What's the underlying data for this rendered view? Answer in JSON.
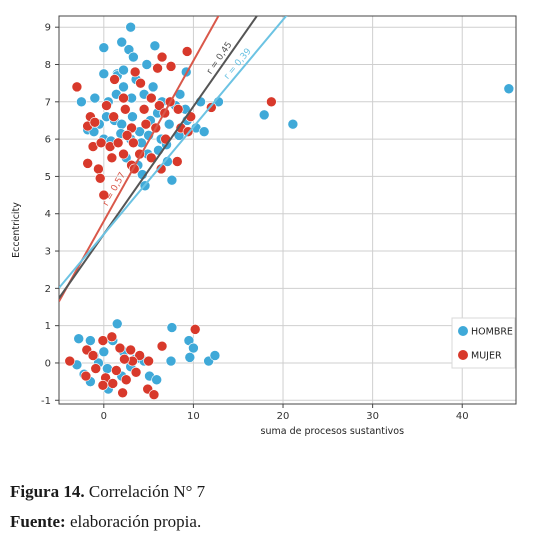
{
  "chart_data": {
    "type": "scatter",
    "title": "",
    "xlabel": "suma de procesos sustantivos",
    "ylabel": "Eccentricity",
    "xlim": [
      -5,
      46
    ],
    "ylim": [
      -1.1,
      9.3
    ],
    "xticks": [
      0,
      10,
      20,
      30,
      40
    ],
    "yticks": [
      -1,
      0,
      1,
      2,
      3,
      4,
      5,
      6,
      7,
      8,
      9
    ],
    "grid": true,
    "legend_position": "right",
    "series": [
      {
        "name": "HOMBRE",
        "color": "#3fa9d8",
        "points": [
          [
            0,
            8.45
          ],
          [
            2,
            8.6
          ],
          [
            3,
            9
          ],
          [
            2.8,
            8.4
          ],
          [
            3.3,
            8.2
          ],
          [
            5.7,
            8.5
          ],
          [
            0,
            7.75
          ],
          [
            1.5,
            7.75
          ],
          [
            -1,
            7.1
          ],
          [
            -2.5,
            7.0
          ],
          [
            0.5,
            7.0
          ],
          [
            1.4,
            7.2
          ],
          [
            2.2,
            7.4
          ],
          [
            3.1,
            7.1
          ],
          [
            4.5,
            7.2
          ],
          [
            5.5,
            7.4
          ],
          [
            6.5,
            7.0
          ],
          [
            8.5,
            7.2
          ],
          [
            9.2,
            7.8
          ],
          [
            10.8,
            7.0
          ],
          [
            12.8,
            7.0
          ],
          [
            -1.8,
            6.25
          ],
          [
            -0.5,
            6.4
          ],
          [
            0.3,
            6.6
          ],
          [
            1.2,
            6.5
          ],
          [
            2,
            6.4
          ],
          [
            3.2,
            6.6
          ],
          [
            4,
            6.2
          ],
          [
            5.2,
            6.5
          ],
          [
            6,
            6.7
          ],
          [
            7.3,
            6.4
          ],
          [
            8,
            6.9
          ],
          [
            9.1,
            6.8
          ],
          [
            10.3,
            6.3
          ],
          [
            11.2,
            6.2
          ],
          [
            -1.1,
            6.2
          ],
          [
            0,
            6.0
          ],
          [
            0.8,
            5.95
          ],
          [
            1.9,
            6.15
          ],
          [
            3,
            6.0
          ],
          [
            4.2,
            5.9
          ],
          [
            5,
            6.1
          ],
          [
            6.4,
            6.0
          ],
          [
            7,
            5.85
          ],
          [
            8.4,
            6.1
          ],
          [
            9.3,
            6.5
          ],
          [
            2.5,
            5.5
          ],
          [
            3.8,
            5.3
          ],
          [
            4.9,
            5.6
          ],
          [
            6.1,
            5.7
          ],
          [
            7.1,
            5.4
          ],
          [
            4.3,
            5.05
          ],
          [
            7.6,
            4.9
          ],
          [
            4.6,
            4.75
          ],
          [
            17.9,
            6.65
          ],
          [
            21.1,
            6.4
          ],
          [
            45.2,
            7.35
          ],
          [
            1.5,
            7.7
          ],
          [
            2.2,
            7.85
          ],
          [
            4.8,
            8.0
          ],
          [
            3.6,
            7.6
          ],
          [
            -1.5,
            0.6
          ],
          [
            -2.8,
            0.65
          ],
          [
            -1.1,
            0.2
          ],
          [
            0,
            0.3
          ],
          [
            1,
            0.6
          ],
          [
            1.5,
            1.05
          ],
          [
            2.2,
            0.3
          ],
          [
            3.5,
            0.1
          ],
          [
            4.2,
            0.1
          ],
          [
            5.1,
            -0.35
          ],
          [
            5.9,
            -0.45
          ],
          [
            0.4,
            -0.15
          ],
          [
            -0.6,
            0
          ],
          [
            -2.2,
            -0.3
          ],
          [
            -3,
            -0.05
          ],
          [
            -1.5,
            -0.5
          ],
          [
            0.5,
            -0.7
          ],
          [
            2,
            -0.35
          ],
          [
            3,
            -0.1
          ],
          [
            7.6,
            0.95
          ],
          [
            9.5,
            0.6
          ],
          [
            10,
            0.4
          ],
          [
            9.6,
            0.15
          ],
          [
            11.7,
            0.05
          ],
          [
            12.4,
            0.2
          ],
          [
            7.5,
            0.05
          ],
          [
            4.5,
            0.05
          ]
        ]
      },
      {
        "name": "MUJER",
        "color": "#d8392b",
        "points": [
          [
            -3,
            7.4
          ],
          [
            1.2,
            7.6
          ],
          [
            2.2,
            7.1
          ],
          [
            3.5,
            7.8
          ],
          [
            6.5,
            8.2
          ],
          [
            7.5,
            7.95
          ],
          [
            9.3,
            8.35
          ],
          [
            6,
            7.9
          ],
          [
            -1.5,
            6.6
          ],
          [
            -1.8,
            6.35
          ],
          [
            -1,
            6.45
          ],
          [
            0.3,
            6.9
          ],
          [
            1.1,
            6.6
          ],
          [
            2.4,
            6.8
          ],
          [
            3.1,
            6.3
          ],
          [
            4.5,
            6.8
          ],
          [
            5.3,
            7.1
          ],
          [
            6.2,
            6.9
          ],
          [
            7.4,
            7.0
          ],
          [
            8.3,
            6.8
          ],
          [
            9.7,
            6.6
          ],
          [
            12,
            6.85
          ],
          [
            18.7,
            7.0
          ],
          [
            -1.2,
            5.8
          ],
          [
            -0.3,
            5.9
          ],
          [
            0.7,
            5.8
          ],
          [
            1.6,
            5.9
          ],
          [
            2.6,
            6.1
          ],
          [
            3.3,
            5.9
          ],
          [
            4.7,
            6.4
          ],
          [
            5.8,
            6.3
          ],
          [
            6.9,
            6.0
          ],
          [
            8.6,
            6.3
          ],
          [
            9.4,
            6.2
          ],
          [
            -1.8,
            5.35
          ],
          [
            -0.6,
            5.2
          ],
          [
            0.9,
            5.5
          ],
          [
            2.2,
            5.6
          ],
          [
            3.1,
            5.3
          ],
          [
            4,
            5.6
          ],
          [
            5.3,
            5.5
          ],
          [
            6.4,
            5.2
          ],
          [
            8.2,
            5.4
          ],
          [
            -0.4,
            4.95
          ],
          [
            0,
            4.5
          ],
          [
            3.4,
            5.2
          ],
          [
            6.8,
            6.7
          ],
          [
            4.1,
            7.5
          ],
          [
            -3.8,
            0.05
          ],
          [
            -1.9,
            0.35
          ],
          [
            -1.2,
            0.2
          ],
          [
            -0.1,
            0.6
          ],
          [
            0.9,
            0.7
          ],
          [
            1.8,
            0.4
          ],
          [
            3,
            0.35
          ],
          [
            4,
            0.2
          ],
          [
            6.5,
            0.45
          ],
          [
            10.2,
            0.9
          ],
          [
            -0.9,
            -0.15
          ],
          [
            0.2,
            -0.4
          ],
          [
            1.4,
            -0.2
          ],
          [
            2.5,
            -0.45
          ],
          [
            3.6,
            -0.25
          ],
          [
            4.9,
            -0.7
          ],
          [
            -0.1,
            -0.6
          ],
          [
            1,
            -0.55
          ],
          [
            2.1,
            -0.8
          ],
          [
            5.6,
            -0.85
          ],
          [
            -2,
            -0.35
          ],
          [
            3.2,
            0.05
          ],
          [
            2.3,
            0.1
          ],
          [
            5,
            0.05
          ]
        ]
      }
    ],
    "fit_lines": [
      {
        "label": "r = 0,57",
        "color": "#d9584a",
        "intercept": 3.8,
        "slope": 0.43
      },
      {
        "label": "r = 0,45",
        "color": "#555555",
        "intercept": 3.45,
        "slope": 0.3425
      },
      {
        "label": "r = 0,39",
        "color": "#6cc3e3",
        "intercept": 3.45,
        "slope": 0.2875
      }
    ]
  },
  "caption": {
    "figure_label": "Figura 14.",
    "figure_text": " Correlación N° 7",
    "source_label": "Fuente:",
    "source_text": " elaboración propia."
  }
}
